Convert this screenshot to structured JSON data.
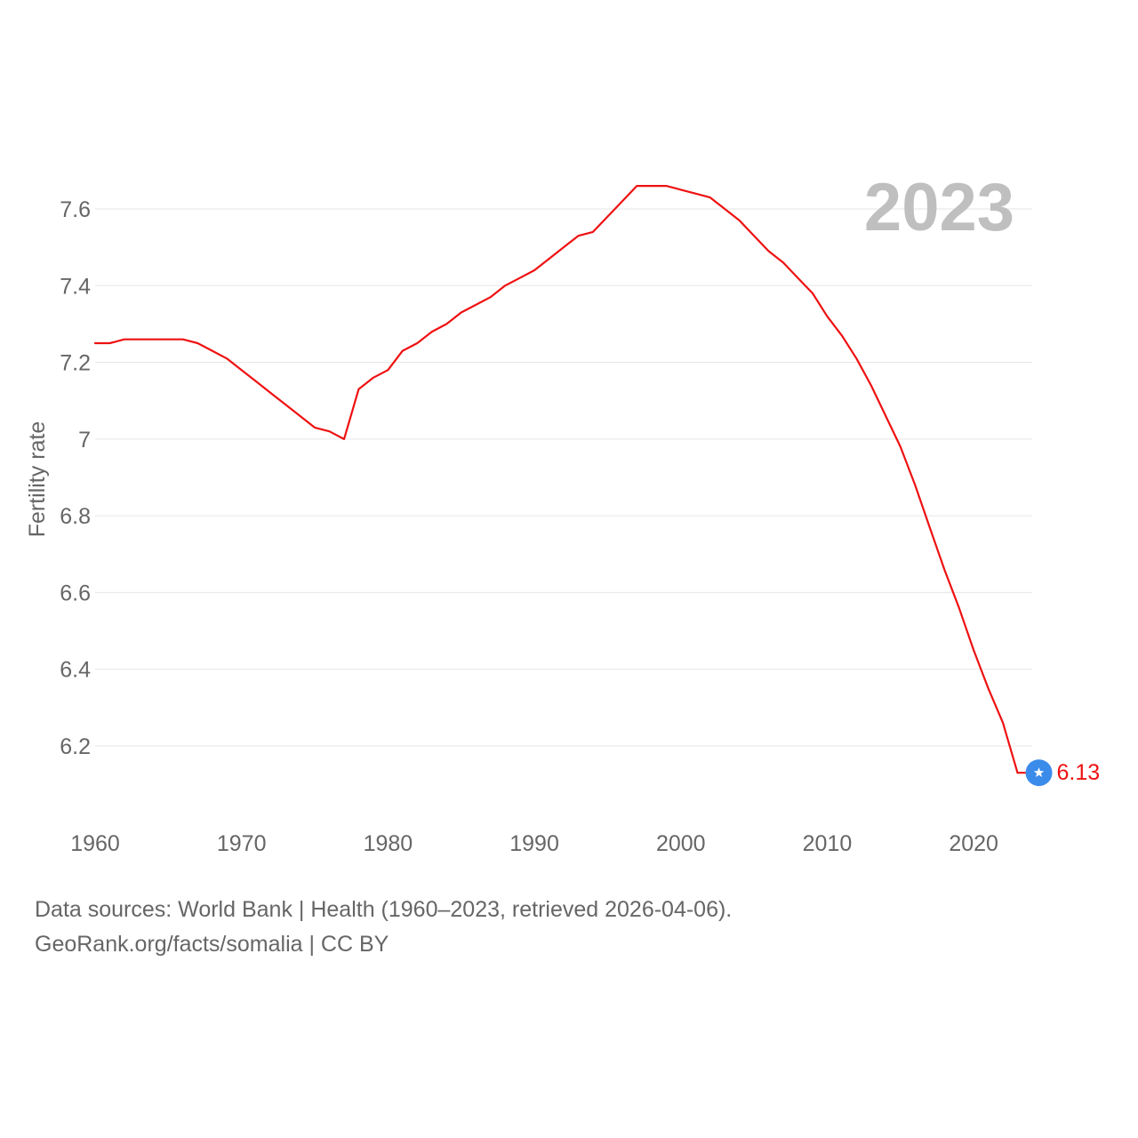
{
  "chart_data": {
    "type": "line",
    "title": "",
    "year_display": "2023",
    "xlabel": "",
    "ylabel": "Fertility rate",
    "xlim": [
      1960,
      2024
    ],
    "ylim": [
      6.05,
      7.7
    ],
    "x_ticks": [
      1960,
      1970,
      1980,
      1990,
      2000,
      2010,
      2020
    ],
    "y_ticks": [
      6.2,
      6.4,
      6.6,
      6.8,
      7,
      7.2,
      7.4,
      7.6
    ],
    "grid": true,
    "series": [
      {
        "color": "#ee1111",
        "x": [
          1960,
          1961,
          1962,
          1963,
          1964,
          1965,
          1966,
          1967,
          1968,
          1969,
          1970,
          1971,
          1972,
          1973,
          1974,
          1975,
          1976,
          1977,
          1978,
          1979,
          1980,
          1981,
          1982,
          1983,
          1984,
          1985,
          1986,
          1987,
          1988,
          1989,
          1990,
          1991,
          1992,
          1993,
          1994,
          1995,
          1996,
          1997,
          1998,
          1999,
          2000,
          2001,
          2002,
          2003,
          2004,
          2005,
          2006,
          2007,
          2008,
          2009,
          2010,
          2011,
          2012,
          2013,
          2014,
          2015,
          2016,
          2017,
          2018,
          2019,
          2020,
          2021,
          2022,
          2023
        ],
        "values": [
          7.25,
          7.25,
          7.26,
          7.26,
          7.26,
          7.26,
          7.26,
          7.25,
          7.23,
          7.21,
          7.18,
          7.15,
          7.12,
          7.09,
          7.06,
          7.03,
          7.02,
          7.0,
          7.13,
          7.16,
          7.18,
          7.23,
          7.25,
          7.28,
          7.3,
          7.33,
          7.35,
          7.37,
          7.4,
          7.42,
          7.44,
          7.47,
          7.5,
          7.53,
          7.54,
          7.58,
          7.62,
          7.66,
          7.66,
          7.66,
          7.65,
          7.64,
          7.63,
          7.6,
          7.57,
          7.53,
          7.49,
          7.46,
          7.42,
          7.38,
          7.32,
          7.27,
          7.21,
          7.14,
          7.06,
          6.98,
          6.88,
          6.77,
          6.66,
          6.56,
          6.45,
          6.35,
          6.26,
          6.13
        ]
      }
    ],
    "end_label": "6.13",
    "end_marker": {
      "color": "#3b8beb",
      "icon": "star-icon"
    }
  },
  "source": {
    "line1": "Data sources: World Bank | Health (1960–2023, retrieved 2026-04-06).",
    "line2": "GeoRank.org/facts/somalia | CC BY"
  }
}
